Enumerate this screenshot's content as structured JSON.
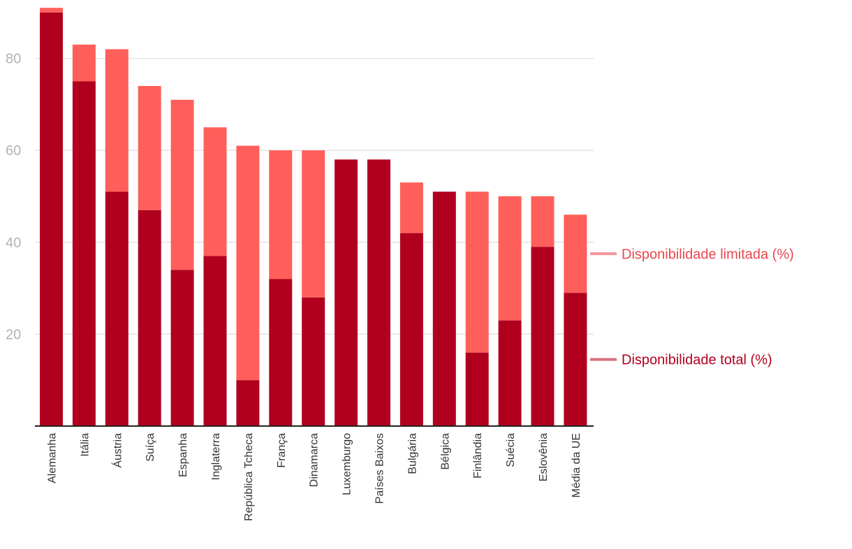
{
  "chart_data": {
    "type": "bar",
    "stacked": true,
    "categories": [
      "Alemanha",
      "Itália",
      "Áustria",
      "Suíça",
      "Espanha",
      "Inglaterra",
      "República Tcheca",
      "França",
      "Dinamarca",
      "Luxemburgo",
      "Países Baixos",
      "Bulgária",
      "Bélgica",
      "Finlândia",
      "Suécia",
      "Eslovênia",
      "Média da UE"
    ],
    "series": [
      {
        "name": "Disponibilidade total (%)",
        "color": "#b0001e",
        "values": [
          90,
          75,
          51,
          47,
          34,
          37,
          10,
          32,
          28,
          58,
          58,
          42,
          51,
          16,
          23,
          39,
          29
        ]
      },
      {
        "name": "Disponibilidade limitada (%)",
        "color": "#ff5f5a",
        "values": [
          1,
          8,
          31,
          27,
          37,
          28,
          51,
          28,
          32,
          0,
          0,
          11,
          0,
          35,
          27,
          11,
          17
        ]
      }
    ],
    "yticks": [
      20,
      40,
      60,
      80
    ],
    "ylim": [
      0,
      91
    ],
    "grid": true,
    "legend_position": "right",
    "legend": [
      {
        "label": "Disponibilidade limitada (%)",
        "text_color": "#e8464e",
        "line_color": "#f2949b",
        "anchor_value": 37.5
      },
      {
        "label": "Disponibilidade total (%)",
        "text_color": "#b0001e",
        "line_color": "#d9707e",
        "anchor_value": 14.5
      }
    ],
    "title": "",
    "xlabel": "",
    "ylabel": ""
  }
}
